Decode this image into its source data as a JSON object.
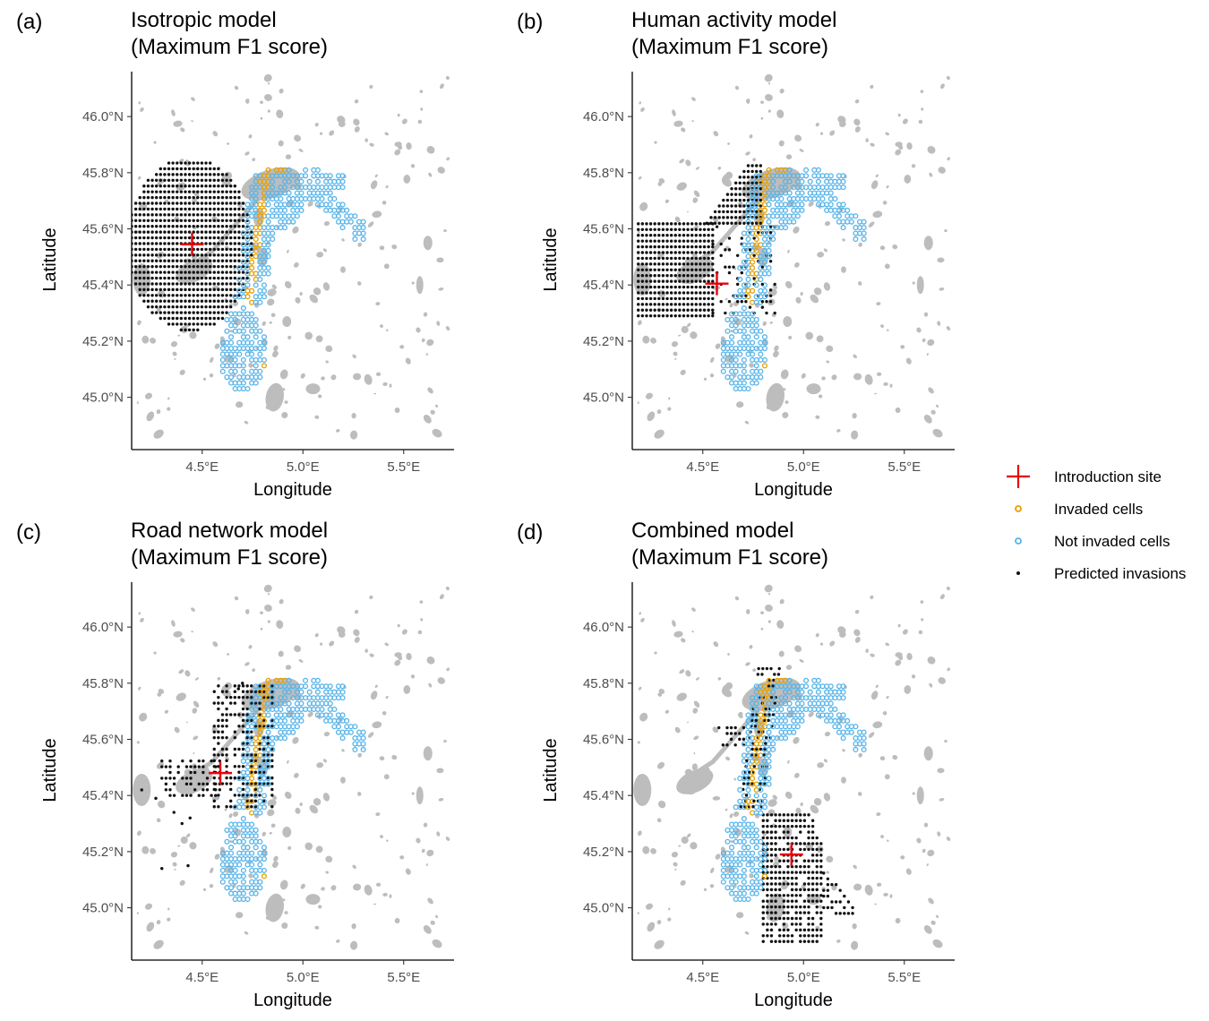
{
  "panels": [
    {
      "letter": "(a)",
      "title_line1": "Isotropic model",
      "title_line2": "(Maximum F1 score)",
      "intro": [
        4.45,
        45.545
      ],
      "shape": "circle",
      "center": [
        4.44,
        45.545
      ],
      "radius": 0.31
    },
    {
      "letter": "(b)",
      "title_line1": "Human activity model",
      "title_line2": "(Maximum F1 score)",
      "intro": [
        4.57,
        45.405
      ],
      "shape": "human"
    },
    {
      "letter": "(c)",
      "title_line1": "Road network model",
      "title_line2": "(Maximum F1 score)",
      "intro": [
        4.59,
        45.48
      ],
      "shape": "road"
    },
    {
      "letter": "(d)",
      "title_line1": "Combined model",
      "title_line2": "(Maximum F1 score)",
      "intro": [
        4.94,
        45.19
      ],
      "shape": "combined"
    }
  ],
  "axes": {
    "x_label": "Longitude",
    "y_label": "Latitude",
    "x_ticks": [
      "4.5°E",
      "5.0°E",
      "5.5°E"
    ],
    "y_ticks": [
      "45.0°N",
      "45.2°N",
      "45.4°N",
      "45.6°N",
      "45.8°N",
      "46.0°N"
    ],
    "x_tick_values": [
      4.5,
      5.0,
      5.5
    ],
    "y_tick_values": [
      45.0,
      45.2,
      45.4,
      45.6,
      45.8,
      46.0
    ],
    "x_range": [
      4.15,
      5.75
    ],
    "y_range": [
      44.82,
      46.16
    ]
  },
  "legend": {
    "items": [
      {
        "label": "Introduction site",
        "symbol": "red-cross-icon"
      },
      {
        "label": "Invaded cells",
        "symbol": "orange-ring-icon"
      },
      {
        "label": "Not invaded cells",
        "symbol": "blue-ring-icon"
      },
      {
        "label": "Predicted invasions",
        "symbol": "black-dot-icon"
      }
    ]
  },
  "colors": {
    "introduction_site": "#e8000b",
    "invaded": "#e69f00",
    "not_invaded": "#56b4e9",
    "predicted": "#111111",
    "urban_background": "#bdbdbd"
  }
}
